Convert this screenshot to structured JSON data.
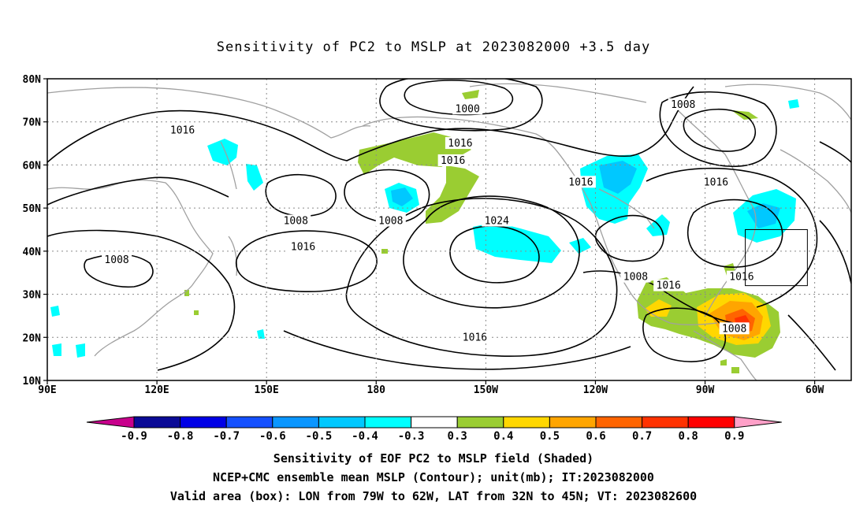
{
  "title": "Sensitivity of PC2 to MSLP at 2023082000 +3.5 day",
  "axes": {
    "lat_labels": [
      "80N",
      "70N",
      "60N",
      "50N",
      "40N",
      "30N",
      "20N",
      "10N"
    ],
    "lon_labels": [
      "90E",
      "120E",
      "150E",
      "180",
      "150W",
      "120W",
      "90W",
      "60W"
    ],
    "lat_range": [
      10,
      80
    ],
    "lon_range_east": [
      90,
      310
    ]
  },
  "contour_labels": [
    {
      "text": "1000",
      "lon": 205,
      "lat": 73
    },
    {
      "text": "1008",
      "lon": 264,
      "lat": 74
    },
    {
      "text": "1016",
      "lon": 127,
      "lat": 68
    },
    {
      "text": "1016",
      "lon": 203,
      "lat": 65
    },
    {
      "text": "1016",
      "lon": 201,
      "lat": 61
    },
    {
      "text": "1016",
      "lon": 236,
      "lat": 56
    },
    {
      "text": "1016",
      "lon": 273,
      "lat": 56
    },
    {
      "text": "1008",
      "lon": 158,
      "lat": 47
    },
    {
      "text": "1008",
      "lon": 184,
      "lat": 47
    },
    {
      "text": "1024",
      "lon": 213,
      "lat": 47
    },
    {
      "text": "1016",
      "lon": 160,
      "lat": 41
    },
    {
      "text": "1008",
      "lon": 109,
      "lat": 38
    },
    {
      "text": "1008",
      "lon": 251,
      "lat": 34
    },
    {
      "text": "1016",
      "lon": 260,
      "lat": 32
    },
    {
      "text": "1016",
      "lon": 280,
      "lat": 34
    },
    {
      "text": "1008",
      "lon": 278,
      "lat": 22
    },
    {
      "text": "1016",
      "lon": 207,
      "lat": 20
    }
  ],
  "valid_box": {
    "lon_min": 281,
    "lon_max": 298,
    "lat_min": 32,
    "lat_max": 45
  },
  "colorbar": {
    "labels": [
      "-0.9",
      "-0.8",
      "-0.7",
      "-0.6",
      "-0.5",
      "-0.4",
      "-0.3",
      "0.3",
      "0.4",
      "0.5",
      "0.6",
      "0.7",
      "0.8",
      "0.9"
    ],
    "colors": [
      "#0a0a96",
      "#0000e6",
      "#1450ff",
      "#0a96ff",
      "#00c8ff",
      "#00ffff",
      "#ffffff",
      "#9acd32",
      "#ffd700",
      "#ffa500",
      "#ff6400",
      "#ff3200",
      "#ff0000"
    ],
    "low_arrow_color": "#c8008c",
    "high_arrow_color": "#ffa0c8"
  },
  "captions": {
    "line1": "Sensitivity of EOF PC2 to MSLP field (Shaded)",
    "line2": "NCEP+CMC ensemble mean MSLP (Contour); unit(mb); IT:2023082000",
    "line3": "Valid area (box): LON from 79W to 62W, LAT from 32N to 45N; VT: 2023082600"
  }
}
